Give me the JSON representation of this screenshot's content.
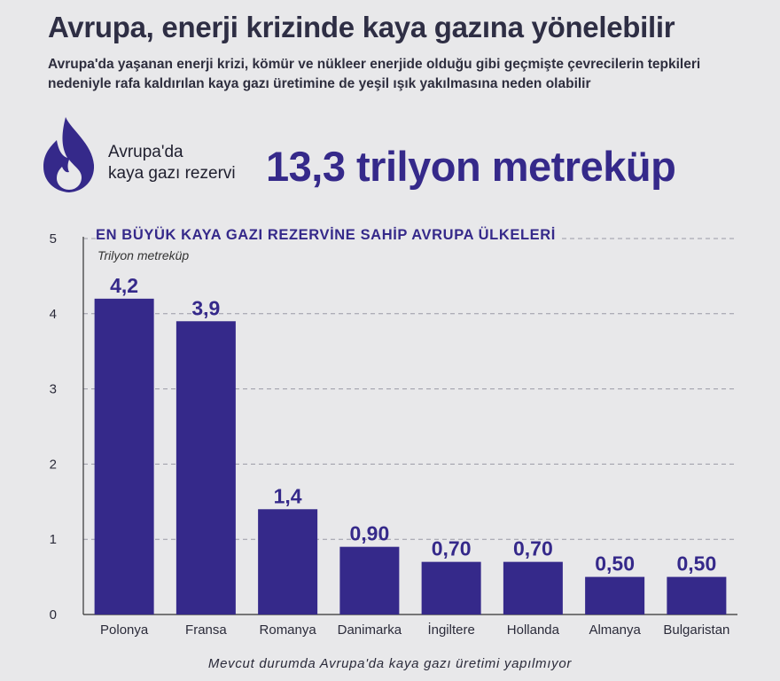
{
  "header": {
    "title": "Avrupa, enerji krizinde kaya gazına yönelebilir",
    "subtitle": "Avrupa'da yaşanan enerji krizi, kömür ve nükleer enerjide olduğu gibi geçmişte çevrecilerin tepkileri nedeniyle rafa kaldırılan kaya gazı üretimine de yeşil ışık yakılmasına neden olabilir"
  },
  "highlight": {
    "icon": "flame-icon",
    "label_line1": "Avrupa'da",
    "label_line2": "kaya gazı rezervi",
    "value": "13,3 trilyon metreküp"
  },
  "chart_data": {
    "type": "bar",
    "title": "EN BÜYÜK KAYA GAZI REZERVİNE SAHİP AVRUPA ÜLKELERİ",
    "unit": "Trilyon metreküp",
    "categories": [
      "Polonya",
      "Fransa",
      "Romanya",
      "Danimarka",
      "İngiltere",
      "Hollanda",
      "Almanya",
      "Bulgaristan"
    ],
    "values": [
      4.2,
      3.9,
      1.4,
      0.9,
      0.7,
      0.7,
      0.5,
      0.5
    ],
    "value_labels": [
      "4,2",
      "3,9",
      "1,4",
      "0,90",
      "0,70",
      "0,70",
      "0,50",
      "0,50"
    ],
    "yticks": [
      0,
      1,
      2,
      3,
      4,
      5
    ],
    "ylim": [
      0,
      5
    ],
    "grid": true,
    "bar_color": "#35298a"
  },
  "footnote": "Mevcut durumda Avrupa'da kaya gazı üretimi yapılmıyor"
}
